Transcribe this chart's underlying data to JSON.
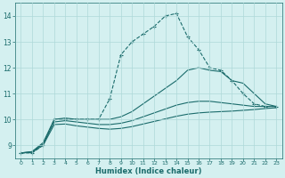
{
  "xlabel": "Humidex (Indice chaleur)",
  "bg_color": "#d4f0f0",
  "line_color": "#1a6b6b",
  "grid_color": "#aed8d8",
  "xlim": [
    -0.5,
    23.5
  ],
  "ylim": [
    8.5,
    14.5
  ],
  "xticks": [
    0,
    1,
    2,
    3,
    4,
    5,
    6,
    7,
    8,
    9,
    10,
    11,
    12,
    13,
    14,
    15,
    16,
    17,
    18,
    19,
    20,
    21,
    22,
    23
  ],
  "yticks": [
    9,
    10,
    11,
    12,
    13,
    14
  ],
  "lines": [
    {
      "x": [
        0,
        1,
        2,
        3,
        4,
        5,
        6,
        7,
        8,
        9,
        10,
        11,
        12,
        13,
        14,
        15,
        16,
        17,
        18,
        19,
        20,
        21,
        22,
        23
      ],
      "y": [
        8.7,
        8.7,
        9.0,
        10.0,
        10.0,
        10.0,
        10.0,
        10.0,
        10.8,
        12.5,
        13.0,
        13.3,
        13.6,
        14.0,
        14.1,
        13.2,
        12.7,
        12.0,
        11.9,
        11.5,
        11.0,
        10.6,
        10.5,
        10.5
      ],
      "marker": "+"
    },
    {
      "x": [
        0,
        1,
        2,
        3,
        4,
        5,
        6,
        7,
        8,
        9,
        10,
        11,
        12,
        13,
        14,
        15,
        16,
        17,
        18,
        19,
        20,
        21,
        22,
        23
      ],
      "y": [
        8.7,
        8.75,
        9.1,
        10.0,
        10.05,
        10.0,
        10.0,
        10.0,
        10.0,
        10.1,
        10.3,
        10.6,
        10.9,
        11.2,
        11.5,
        11.9,
        12.0,
        11.9,
        11.85,
        11.5,
        11.4,
        11.0,
        10.6,
        10.5
      ],
      "marker": null
    },
    {
      "x": [
        0,
        1,
        2,
        3,
        4,
        5,
        6,
        7,
        8,
        9,
        10,
        11,
        12,
        13,
        14,
        15,
        16,
        17,
        18,
        19,
        20,
        21,
        22,
        23
      ],
      "y": [
        8.7,
        8.75,
        9.05,
        9.9,
        9.95,
        9.9,
        9.85,
        9.8,
        9.8,
        9.85,
        9.95,
        10.1,
        10.25,
        10.4,
        10.55,
        10.65,
        10.7,
        10.7,
        10.65,
        10.6,
        10.55,
        10.5,
        10.5,
        10.5
      ],
      "marker": null
    },
    {
      "x": [
        0,
        1,
        2,
        3,
        4,
        5,
        6,
        7,
        8,
        9,
        10,
        11,
        12,
        13,
        14,
        15,
        16,
        17,
        18,
        19,
        20,
        21,
        22,
        23
      ],
      "y": [
        8.7,
        8.72,
        9.0,
        9.8,
        9.82,
        9.75,
        9.7,
        9.65,
        9.62,
        9.65,
        9.72,
        9.82,
        9.92,
        10.02,
        10.12,
        10.2,
        10.25,
        10.28,
        10.3,
        10.32,
        10.35,
        10.38,
        10.42,
        10.45
      ],
      "marker": null
    }
  ]
}
